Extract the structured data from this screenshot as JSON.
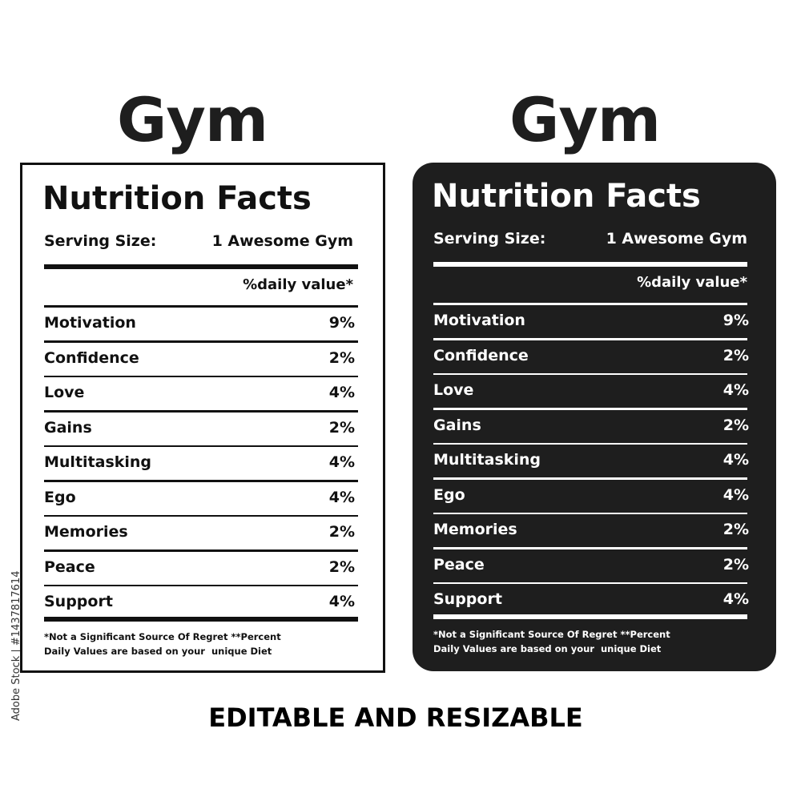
{
  "labels": [
    {
      "heading": "Gym",
      "title": "Nutrition Facts",
      "serving_label": "Serving Size:",
      "serving_value": "1 Awesome Gym",
      "dv_header": "%daily value*",
      "rows": [
        [
          "Motivation",
          "9%"
        ],
        [
          "Confidence",
          "2%"
        ],
        [
          "Love",
          "4%"
        ],
        [
          "Gains",
          "2%"
        ],
        [
          "Multitasking",
          "4%"
        ],
        [
          "Ego",
          "4%"
        ],
        [
          "Memories",
          "2%"
        ],
        [
          "Peace",
          "2%"
        ],
        [
          "Support",
          "4%"
        ]
      ],
      "footnote": [
        "*Not a Significant Source Of Regret **Percent",
        "Daily Values are based on your  unique Diet"
      ]
    },
    {
      "heading": "Gym",
      "title": "Nutrition Facts",
      "serving_label": "Serving Size:",
      "serving_value": "1 Awesome Gym",
      "dv_header": "%daily value*",
      "rows": [
        [
          "Motivation",
          "9%"
        ],
        [
          "Confidence",
          "2%"
        ],
        [
          "Love",
          "4%"
        ],
        [
          "Gains",
          "2%"
        ],
        [
          "Multitasking",
          "4%"
        ],
        [
          "Ego",
          "4%"
        ],
        [
          "Memories",
          "2%"
        ],
        [
          "Peace",
          "2%"
        ],
        [
          "Support",
          "4%"
        ]
      ],
      "footnote": [
        "*Not a Significant Source Of Regret **Percent",
        "Daily Values are based on your  unique Diet"
      ]
    }
  ],
  "caption": "EDITABLE AND RESIZABLE",
  "watermark": "Adobe Stock | #1437817614"
}
